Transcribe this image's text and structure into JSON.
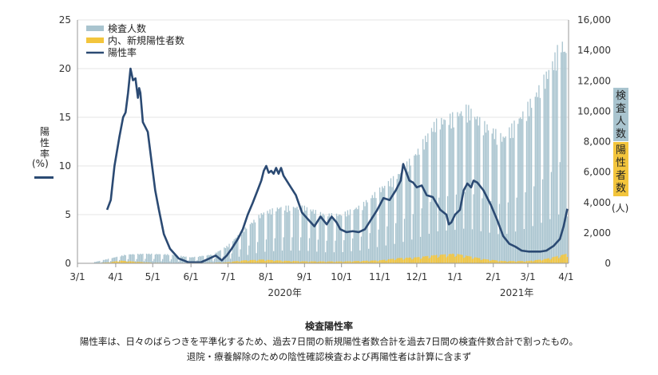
{
  "chart_data": {
    "type": "bar+line",
    "title": "検査陽性率",
    "notes": [
      "陽性率は、日々のばらつきを平準化するため、過去7日間の新規陽性者数合計を過去7日間の検査件数合計で割ったもの。",
      "退院・療養解除のための陰性確認検査および再陽性者は計算に含まず"
    ],
    "legend": [
      {
        "name": "検査人数",
        "color": "#a9c4cf",
        "kind": "bar"
      },
      {
        "name": "内、新規陽性者数",
        "color": "#f3c53c",
        "kind": "bar"
      },
      {
        "name": "陽性率",
        "color": "#2b4a73",
        "kind": "line"
      }
    ],
    "legend_position": "top-left",
    "y_left": {
      "label": "陽性率",
      "unit": "(%)",
      "ylim": [
        0,
        25
      ],
      "ticks": [
        "0",
        "5",
        "10",
        "15",
        "20",
        "25"
      ]
    },
    "y_right": {
      "labels": [
        "検査人数",
        "陽性者数"
      ],
      "unit": "(人)",
      "ylim": [
        0,
        16000
      ],
      "ticks": [
        "0",
        "2,000",
        "4,000",
        "6,000",
        "8,000",
        "10,000",
        "12,000",
        "14,000",
        "16,000"
      ]
    },
    "x_ticks": [
      "3/1",
      "4/1",
      "5/1",
      "6/1",
      "7/1",
      "8/1",
      "9/1",
      "10/1",
      "11/1",
      "12/1",
      "1/1",
      "2/1",
      "3/1",
      "4/1"
    ],
    "x_tick_offsets": [
      0,
      31,
      61,
      92,
      122,
      153,
      184,
      214,
      245,
      275,
      306,
      337,
      365,
      396
    ],
    "x_range_days": [
      0,
      398
    ],
    "year_labels": [
      {
        "text": "2020年",
        "day": 168
      },
      {
        "text": "2021年",
        "day": 356
      }
    ],
    "tests_weekday_anchors": [
      [
        12,
        50
      ],
      [
        25,
        300
      ],
      [
        40,
        600
      ],
      [
        55,
        650
      ],
      [
        75,
        600
      ],
      [
        92,
        400
      ],
      [
        110,
        600
      ],
      [
        122,
        1200
      ],
      [
        135,
        2300
      ],
      [
        150,
        3400
      ],
      [
        165,
        3800
      ],
      [
        184,
        3800
      ],
      [
        200,
        3300
      ],
      [
        214,
        3300
      ],
      [
        230,
        3900
      ],
      [
        245,
        5000
      ],
      [
        260,
        6000
      ],
      [
        275,
        7500
      ],
      [
        290,
        9500
      ],
      [
        306,
        10000
      ],
      [
        316,
        10500
      ],
      [
        328,
        9500
      ],
      [
        345,
        8500
      ],
      [
        360,
        10000
      ],
      [
        372,
        11500
      ],
      [
        385,
        13500
      ],
      [
        392,
        15000
      ],
      [
        397,
        14000
      ]
    ],
    "positives_anchors": [
      [
        12,
        10
      ],
      [
        25,
        60
      ],
      [
        35,
        180
      ],
      [
        45,
        120
      ],
      [
        60,
        40
      ],
      [
        92,
        10
      ],
      [
        120,
        60
      ],
      [
        135,
        200
      ],
      [
        150,
        250
      ],
      [
        165,
        180
      ],
      [
        184,
        130
      ],
      [
        214,
        120
      ],
      [
        245,
        200
      ],
      [
        260,
        350
      ],
      [
        275,
        400
      ],
      [
        290,
        550
      ],
      [
        306,
        650
      ],
      [
        316,
        500
      ],
      [
        330,
        280
      ],
      [
        345,
        150
      ],
      [
        365,
        150
      ],
      [
        380,
        300
      ],
      [
        392,
        550
      ],
      [
        397,
        650
      ]
    ],
    "rate_anchors": [
      [
        24,
        5.5
      ],
      [
        27,
        6.5
      ],
      [
        30,
        10
      ],
      [
        34,
        13
      ],
      [
        37,
        15
      ],
      [
        39,
        15.5
      ],
      [
        41,
        17.5
      ],
      [
        43,
        20
      ],
      [
        45,
        18.8
      ],
      [
        47,
        19
      ],
      [
        49,
        17
      ],
      [
        50,
        18
      ],
      [
        51,
        17.5
      ],
      [
        53,
        14.5
      ],
      [
        55,
        14
      ],
      [
        57,
        13.5
      ],
      [
        60,
        10.5
      ],
      [
        63,
        7.5
      ],
      [
        66,
        5.5
      ],
      [
        70,
        3
      ],
      [
        75,
        1.5
      ],
      [
        82,
        0.5
      ],
      [
        90,
        0.1
      ],
      [
        100,
        0.1
      ],
      [
        107,
        0.5
      ],
      [
        112,
        0.8
      ],
      [
        117,
        0.3
      ],
      [
        121,
        0.8
      ],
      [
        125,
        1.5
      ],
      [
        130,
        2.5
      ],
      [
        134,
        3.5
      ],
      [
        138,
        5
      ],
      [
        142,
        6.2
      ],
      [
        146,
        7.5
      ],
      [
        149,
        8.5
      ],
      [
        151,
        9.5
      ],
      [
        153,
        10
      ],
      [
        155,
        9.3
      ],
      [
        157,
        9.5
      ],
      [
        159,
        9.2
      ],
      [
        161,
        9.8
      ],
      [
        163,
        9.2
      ],
      [
        165,
        9.8
      ],
      [
        167,
        9
      ],
      [
        172,
        8
      ],
      [
        177,
        7
      ],
      [
        182,
        5.2
      ],
      [
        187,
        4.5
      ],
      [
        192,
        3.8
      ],
      [
        197,
        4.8
      ],
      [
        202,
        4
      ],
      [
        206,
        4.8
      ],
      [
        210,
        4.2
      ],
      [
        213,
        3.5
      ],
      [
        218,
        3.2
      ],
      [
        223,
        3.3
      ],
      [
        228,
        3.2
      ],
      [
        233,
        3.5
      ],
      [
        238,
        4.5
      ],
      [
        243,
        5.5
      ],
      [
        248,
        6.7
      ],
      [
        253,
        6.5
      ],
      [
        258,
        7.5
      ],
      [
        262,
        8.5
      ],
      [
        264,
        10.2
      ],
      [
        266,
        9.5
      ],
      [
        269,
        8.5
      ],
      [
        272,
        8.3
      ],
      [
        275,
        7.8
      ],
      [
        279,
        8
      ],
      [
        283,
        7
      ],
      [
        288,
        6.8
      ],
      [
        294,
        5.5
      ],
      [
        299,
        5
      ],
      [
        301,
        4
      ],
      [
        303,
        4.2
      ],
      [
        306,
        5
      ],
      [
        310,
        5.5
      ],
      [
        313,
        7.5
      ],
      [
        316,
        8.2
      ],
      [
        319,
        7.8
      ],
      [
        321,
        8.5
      ],
      [
        324,
        8.3
      ],
      [
        329,
        7.5
      ],
      [
        335,
        6
      ],
      [
        340,
        4.5
      ],
      [
        345,
        2.8
      ],
      [
        350,
        2
      ],
      [
        355,
        1.7
      ],
      [
        360,
        1.3
      ],
      [
        366,
        1.2
      ],
      [
        370,
        1.2
      ],
      [
        375,
        1.2
      ],
      [
        380,
        1.3
      ],
      [
        386,
        1.8
      ],
      [
        391,
        2.5
      ],
      [
        394,
        3.8
      ],
      [
        397,
        5.6
      ]
    ]
  }
}
